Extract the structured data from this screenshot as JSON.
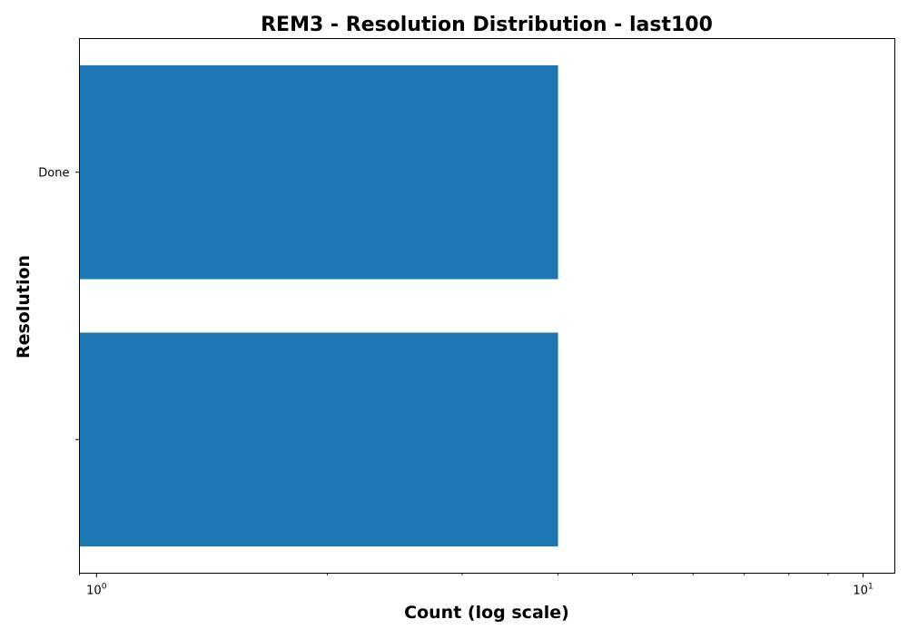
{
  "chart_data": {
    "type": "bar",
    "orientation": "horizontal",
    "title": "REM3 - Resolution Distribution - last100",
    "xlabel": "Count (log scale)",
    "ylabel": "Resolution",
    "x_scale": "log",
    "xlim": [
      0.95,
      11
    ],
    "x_major_ticks": [
      {
        "value": 1,
        "base": "10",
        "exp": "0"
      },
      {
        "value": 10,
        "base": "10",
        "exp": "1"
      }
    ],
    "x_minor_ticks": [
      0.95,
      2,
      3,
      4,
      5,
      6,
      7,
      8,
      9
    ],
    "categories": [
      "Done",
      ""
    ],
    "values": [
      4,
      4
    ],
    "bar_color": "#1f77b4",
    "grid": false,
    "legend": "none"
  }
}
